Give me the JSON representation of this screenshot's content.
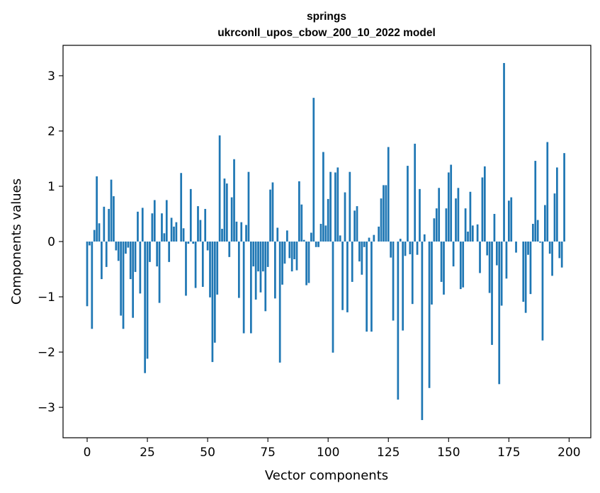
{
  "chart_data": {
    "type": "bar",
    "title": "springs",
    "subtitle": "ukrconll_upos_cbow_200_10_2022 model",
    "xlabel": "Vector components",
    "ylabel": "Components values",
    "xlim": [
      -10,
      209
    ],
    "ylim": [
      -3.55,
      3.55
    ],
    "x_ticks": [
      0,
      25,
      50,
      75,
      100,
      125,
      150,
      175,
      200
    ],
    "x_tick_labels": [
      "0",
      "25",
      "50",
      "75",
      "100",
      "125",
      "150",
      "175",
      "200"
    ],
    "y_ticks": [
      -3,
      -2,
      -1,
      0,
      1,
      2,
      3
    ],
    "y_tick_labels": [
      "−3",
      "−2",
      "−1",
      "0",
      "1",
      "2",
      "3"
    ],
    "bar_color": "#1f77b4",
    "values": [
      -1.17,
      -0.07,
      -1.58,
      0.21,
      1.18,
      0.33,
      -0.68,
      0.63,
      -0.46,
      0.59,
      1.12,
      0.82,
      -0.16,
      -0.35,
      -1.34,
      -1.58,
      -0.22,
      -0.11,
      -0.68,
      -1.38,
      -0.55,
      0.54,
      -0.94,
      0.61,
      -2.38,
      -2.12,
      -0.37,
      0.51,
      0.75,
      -0.45,
      -1.11,
      0.51,
      0.15,
      0.75,
      -0.37,
      0.43,
      0.27,
      0.35,
      0.0,
      1.24,
      0.24,
      -0.98,
      -0.04,
      0.95,
      -0.04,
      -0.84,
      0.64,
      0.39,
      -0.82,
      0.59,
      -0.16,
      -1.01,
      -2.18,
      -1.83,
      -0.96,
      1.92,
      0.23,
      1.14,
      1.05,
      -0.28,
      0.8,
      1.49,
      0.36,
      -1.02,
      0.35,
      -1.66,
      0.3,
      1.26,
      -1.66,
      -0.45,
      -1.05,
      -0.54,
      -0.92,
      -0.54,
      -1.26,
      -0.46,
      0.94,
      1.07,
      -1.03,
      0.25,
      -2.19,
      -0.78,
      -0.4,
      0.2,
      -0.3,
      -0.54,
      -0.32,
      -0.52,
      1.09,
      0.67,
      0.03,
      -0.79,
      -0.75,
      0.16,
      2.6,
      -0.1,
      -0.1,
      0.32,
      1.62,
      0.29,
      0.77,
      1.26,
      -2.01,
      1.25,
      1.34,
      0.11,
      -1.24,
      0.89,
      -1.28,
      1.26,
      -0.73,
      0.56,
      0.64,
      -0.36,
      -0.6,
      -0.1,
      -1.63,
      0.07,
      -1.63,
      0.12,
      0.0,
      0.27,
      0.78,
      1.02,
      1.02,
      1.71,
      -0.29,
      -1.43,
      0.0,
      -2.86,
      0.05,
      -1.61,
      -0.26,
      1.37,
      -0.23,
      -1.13,
      1.77,
      -0.24,
      0.95,
      -3.23,
      0.13,
      0.0,
      -2.65,
      -1.14,
      0.42,
      0.6,
      0.97,
      -0.73,
      -0.96,
      0.6,
      1.25,
      1.39,
      -0.45,
      0.78,
      0.97,
      -0.86,
      -0.83,
      0.6,
      0.18,
      0.9,
      0.29,
      0.0,
      0.31,
      -0.57,
      1.16,
      1.36,
      -0.25,
      -0.93,
      -1.87,
      0.5,
      -0.43,
      -2.58,
      -1.16,
      3.23,
      -0.67,
      0.74,
      0.8,
      0.0,
      -0.2,
      0.0,
      0.0,
      -1.09,
      -1.29,
      -0.24,
      -0.95,
      0.32,
      1.46,
      0.39,
      -0.02,
      -1.79,
      0.66,
      1.8,
      -0.22,
      -0.62,
      0.87,
      1.34,
      -0.3,
      -0.47,
      1.6
    ]
  }
}
